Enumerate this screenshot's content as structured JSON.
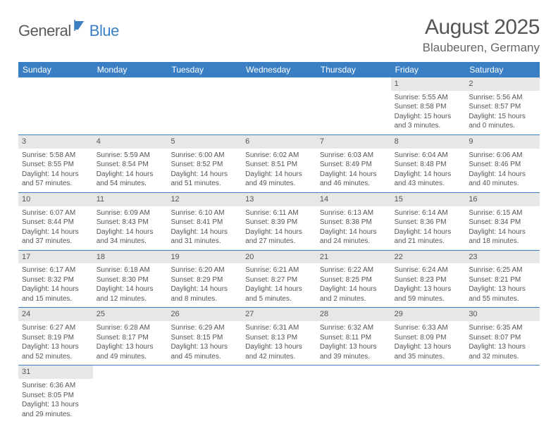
{
  "logo": {
    "general": "General",
    "blue": "Blue"
  },
  "title": "August 2025",
  "location": "Blaubeuren, Germany",
  "colors": {
    "accent": "#3a7fc4",
    "header_bg": "#3a7fc4",
    "daynum_bg": "#e7e7e7",
    "text": "#555555",
    "border": "#3a7fc4",
    "background": "#ffffff"
  },
  "weekdays": [
    "Sunday",
    "Monday",
    "Tuesday",
    "Wednesday",
    "Thursday",
    "Friday",
    "Saturday"
  ],
  "weeks": [
    [
      null,
      null,
      null,
      null,
      null,
      {
        "n": "1",
        "sunrise": "Sunrise: 5:55 AM",
        "sunset": "Sunset: 8:58 PM",
        "daylight": "Daylight: 15 hours and 3 minutes."
      },
      {
        "n": "2",
        "sunrise": "Sunrise: 5:56 AM",
        "sunset": "Sunset: 8:57 PM",
        "daylight": "Daylight: 15 hours and 0 minutes."
      }
    ],
    [
      {
        "n": "3",
        "sunrise": "Sunrise: 5:58 AM",
        "sunset": "Sunset: 8:55 PM",
        "daylight": "Daylight: 14 hours and 57 minutes."
      },
      {
        "n": "4",
        "sunrise": "Sunrise: 5:59 AM",
        "sunset": "Sunset: 8:54 PM",
        "daylight": "Daylight: 14 hours and 54 minutes."
      },
      {
        "n": "5",
        "sunrise": "Sunrise: 6:00 AM",
        "sunset": "Sunset: 8:52 PM",
        "daylight": "Daylight: 14 hours and 51 minutes."
      },
      {
        "n": "6",
        "sunrise": "Sunrise: 6:02 AM",
        "sunset": "Sunset: 8:51 PM",
        "daylight": "Daylight: 14 hours and 49 minutes."
      },
      {
        "n": "7",
        "sunrise": "Sunrise: 6:03 AM",
        "sunset": "Sunset: 8:49 PM",
        "daylight": "Daylight: 14 hours and 46 minutes."
      },
      {
        "n": "8",
        "sunrise": "Sunrise: 6:04 AM",
        "sunset": "Sunset: 8:48 PM",
        "daylight": "Daylight: 14 hours and 43 minutes."
      },
      {
        "n": "9",
        "sunrise": "Sunrise: 6:06 AM",
        "sunset": "Sunset: 8:46 PM",
        "daylight": "Daylight: 14 hours and 40 minutes."
      }
    ],
    [
      {
        "n": "10",
        "sunrise": "Sunrise: 6:07 AM",
        "sunset": "Sunset: 8:44 PM",
        "daylight": "Daylight: 14 hours and 37 minutes."
      },
      {
        "n": "11",
        "sunrise": "Sunrise: 6:09 AM",
        "sunset": "Sunset: 8:43 PM",
        "daylight": "Daylight: 14 hours and 34 minutes."
      },
      {
        "n": "12",
        "sunrise": "Sunrise: 6:10 AM",
        "sunset": "Sunset: 8:41 PM",
        "daylight": "Daylight: 14 hours and 31 minutes."
      },
      {
        "n": "13",
        "sunrise": "Sunrise: 6:11 AM",
        "sunset": "Sunset: 8:39 PM",
        "daylight": "Daylight: 14 hours and 27 minutes."
      },
      {
        "n": "14",
        "sunrise": "Sunrise: 6:13 AM",
        "sunset": "Sunset: 8:38 PM",
        "daylight": "Daylight: 14 hours and 24 minutes."
      },
      {
        "n": "15",
        "sunrise": "Sunrise: 6:14 AM",
        "sunset": "Sunset: 8:36 PM",
        "daylight": "Daylight: 14 hours and 21 minutes."
      },
      {
        "n": "16",
        "sunrise": "Sunrise: 6:15 AM",
        "sunset": "Sunset: 8:34 PM",
        "daylight": "Daylight: 14 hours and 18 minutes."
      }
    ],
    [
      {
        "n": "17",
        "sunrise": "Sunrise: 6:17 AM",
        "sunset": "Sunset: 8:32 PM",
        "daylight": "Daylight: 14 hours and 15 minutes."
      },
      {
        "n": "18",
        "sunrise": "Sunrise: 6:18 AM",
        "sunset": "Sunset: 8:30 PM",
        "daylight": "Daylight: 14 hours and 12 minutes."
      },
      {
        "n": "19",
        "sunrise": "Sunrise: 6:20 AM",
        "sunset": "Sunset: 8:29 PM",
        "daylight": "Daylight: 14 hours and 8 minutes."
      },
      {
        "n": "20",
        "sunrise": "Sunrise: 6:21 AM",
        "sunset": "Sunset: 8:27 PM",
        "daylight": "Daylight: 14 hours and 5 minutes."
      },
      {
        "n": "21",
        "sunrise": "Sunrise: 6:22 AM",
        "sunset": "Sunset: 8:25 PM",
        "daylight": "Daylight: 14 hours and 2 minutes."
      },
      {
        "n": "22",
        "sunrise": "Sunrise: 6:24 AM",
        "sunset": "Sunset: 8:23 PM",
        "daylight": "Daylight: 13 hours and 59 minutes."
      },
      {
        "n": "23",
        "sunrise": "Sunrise: 6:25 AM",
        "sunset": "Sunset: 8:21 PM",
        "daylight": "Daylight: 13 hours and 55 minutes."
      }
    ],
    [
      {
        "n": "24",
        "sunrise": "Sunrise: 6:27 AM",
        "sunset": "Sunset: 8:19 PM",
        "daylight": "Daylight: 13 hours and 52 minutes."
      },
      {
        "n": "25",
        "sunrise": "Sunrise: 6:28 AM",
        "sunset": "Sunset: 8:17 PM",
        "daylight": "Daylight: 13 hours and 49 minutes."
      },
      {
        "n": "26",
        "sunrise": "Sunrise: 6:29 AM",
        "sunset": "Sunset: 8:15 PM",
        "daylight": "Daylight: 13 hours and 45 minutes."
      },
      {
        "n": "27",
        "sunrise": "Sunrise: 6:31 AM",
        "sunset": "Sunset: 8:13 PM",
        "daylight": "Daylight: 13 hours and 42 minutes."
      },
      {
        "n": "28",
        "sunrise": "Sunrise: 6:32 AM",
        "sunset": "Sunset: 8:11 PM",
        "daylight": "Daylight: 13 hours and 39 minutes."
      },
      {
        "n": "29",
        "sunrise": "Sunrise: 6:33 AM",
        "sunset": "Sunset: 8:09 PM",
        "daylight": "Daylight: 13 hours and 35 minutes."
      },
      {
        "n": "30",
        "sunrise": "Sunrise: 6:35 AM",
        "sunset": "Sunset: 8:07 PM",
        "daylight": "Daylight: 13 hours and 32 minutes."
      }
    ],
    [
      {
        "n": "31",
        "sunrise": "Sunrise: 6:36 AM",
        "sunset": "Sunset: 8:05 PM",
        "daylight": "Daylight: 13 hours and 29 minutes."
      },
      null,
      null,
      null,
      null,
      null,
      null
    ]
  ]
}
